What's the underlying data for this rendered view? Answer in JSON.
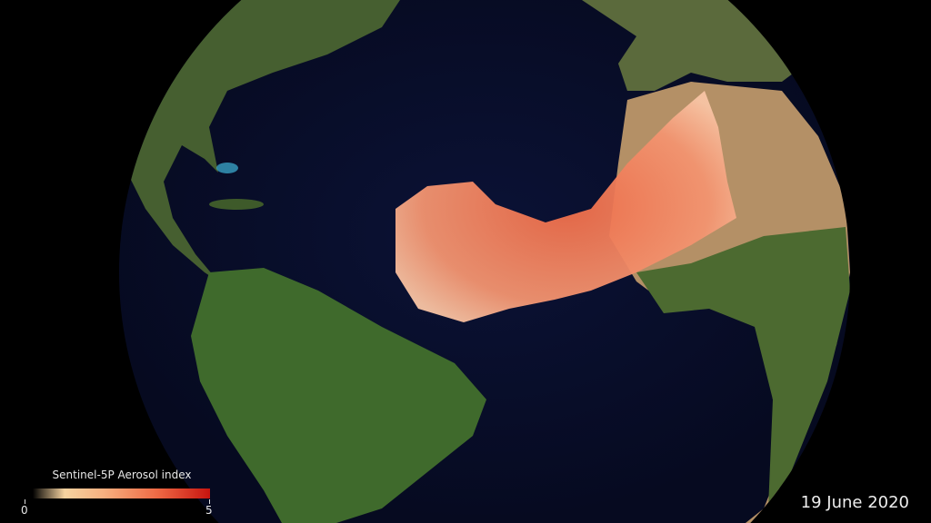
{
  "legend": {
    "title": "Sentinel-5P Aerosol index",
    "min_label": "0",
    "max_label": "5",
    "range": [
      0,
      5
    ],
    "colors": [
      "#000000",
      "#f6d3a0",
      "#ef6a45",
      "#c8140f"
    ]
  },
  "date": "19 June 2020",
  "colors": {
    "ocean": "#0a0f2e",
    "land": "#3f5e2a",
    "desert": "#b89468",
    "dust": "#f07a55"
  }
}
